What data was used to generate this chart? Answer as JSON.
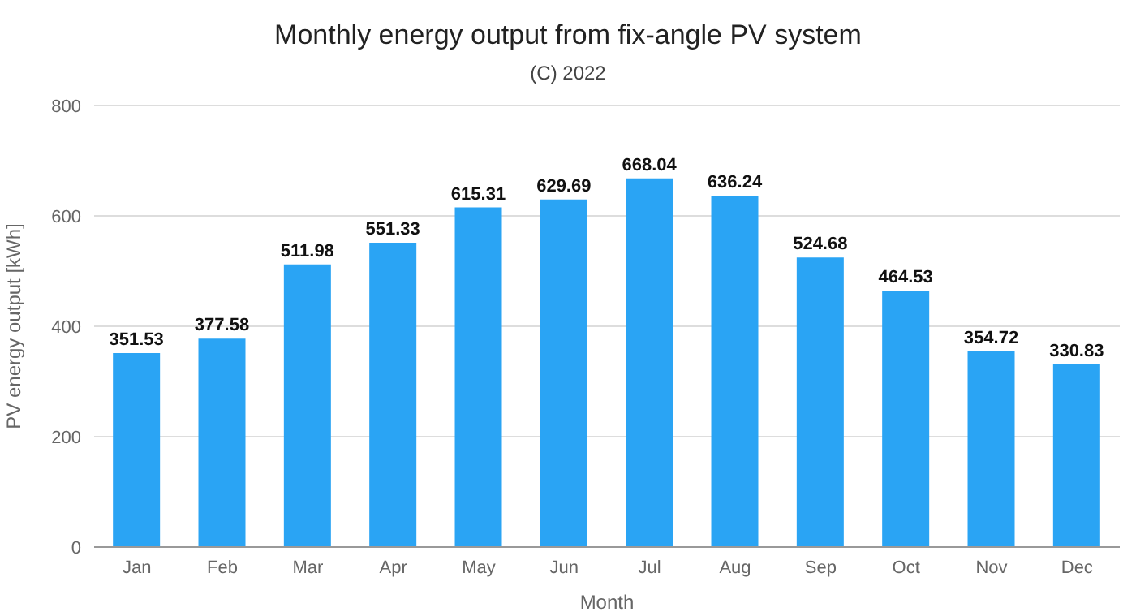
{
  "chart_data": {
    "type": "bar",
    "title": "Monthly energy output from fix-angle PV system",
    "subtitle": "(C) 2022",
    "xlabel": "Month",
    "ylabel": "PV energy output [kWh]",
    "categories": [
      "Jan",
      "Feb",
      "Mar",
      "Apr",
      "May",
      "Jun",
      "Jul",
      "Aug",
      "Sep",
      "Oct",
      "Nov",
      "Dec"
    ],
    "values": [
      351.53,
      377.58,
      511.98,
      551.33,
      615.31,
      629.69,
      668.04,
      636.24,
      524.68,
      464.53,
      354.72,
      330.83
    ],
    "color": "#2aa4f4",
    "ylim": [
      0,
      800
    ],
    "yticks": [
      0,
      200,
      400,
      600,
      800
    ],
    "grid": "y",
    "data_labels": true
  }
}
